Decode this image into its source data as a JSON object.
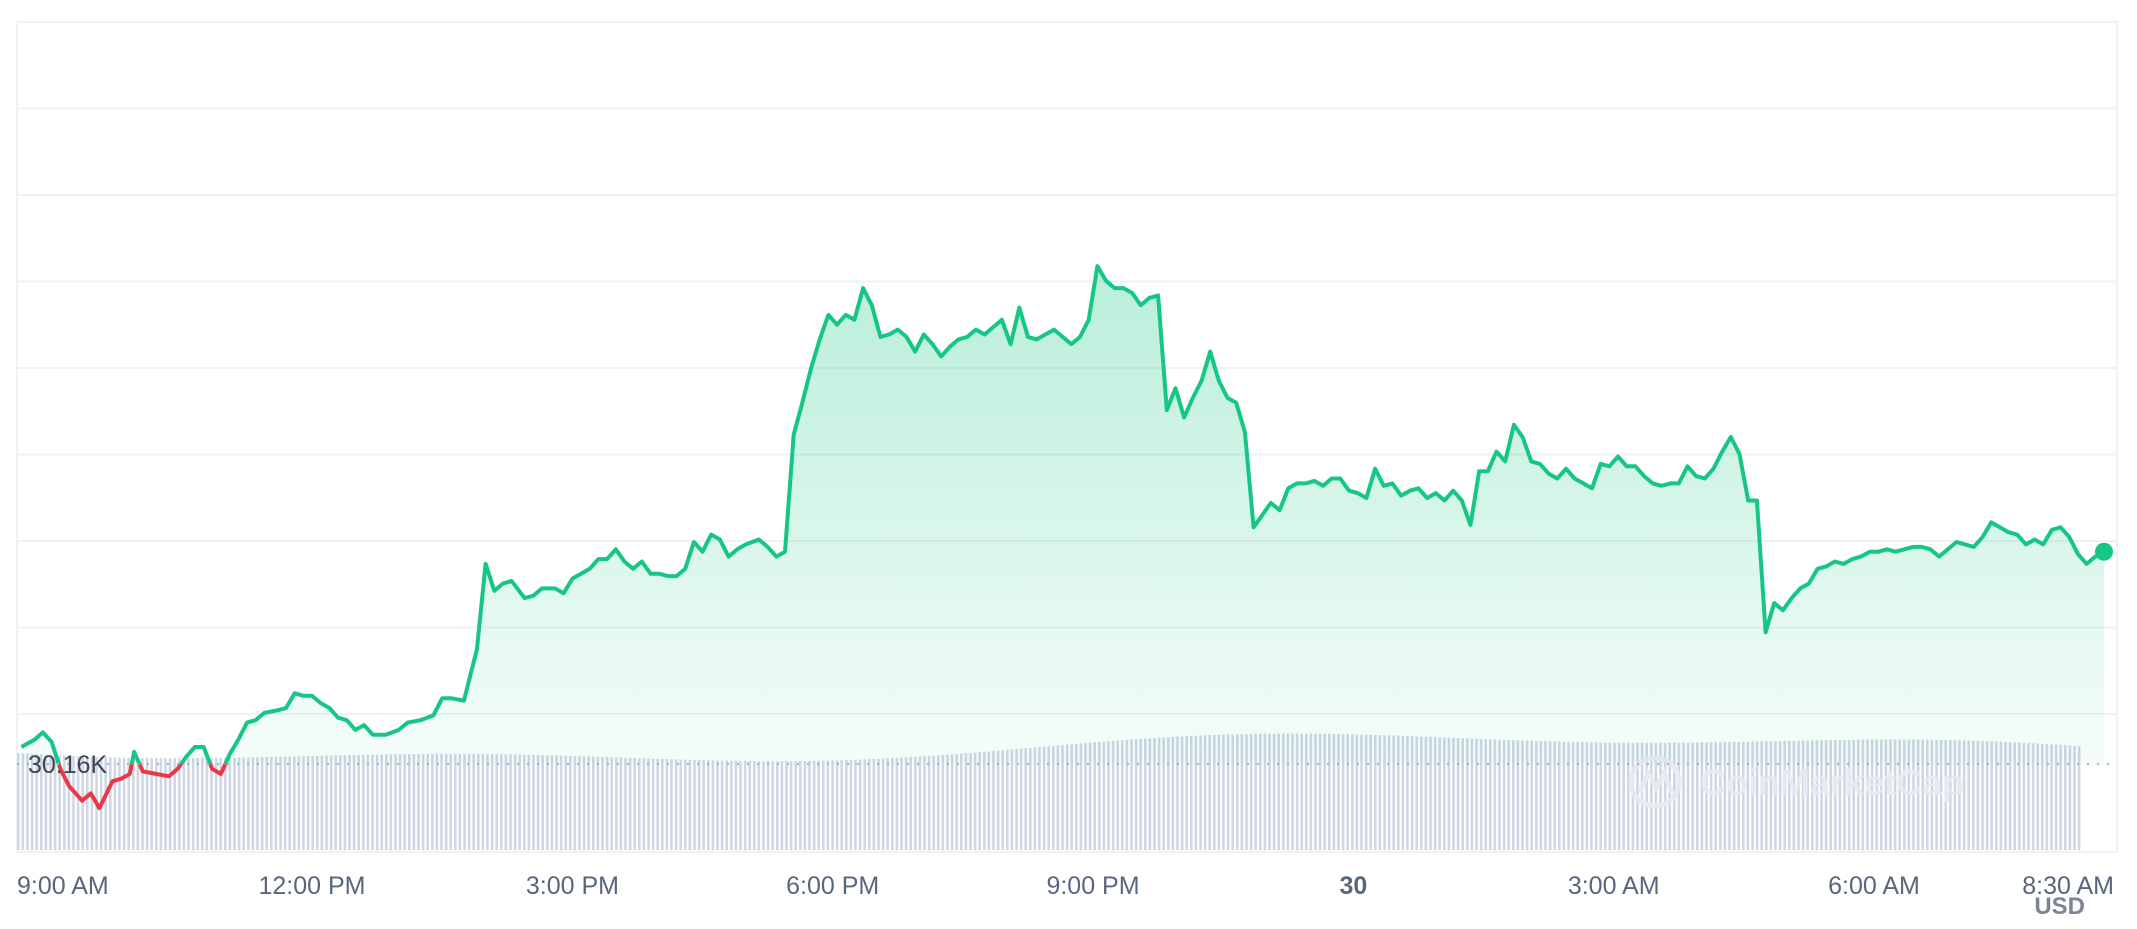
{
  "colors": {
    "up": "#16c784",
    "down": "#ea3943",
    "volume": "#cfd6e4",
    "grid": "#eff2f5",
    "reference": "#a6b0c3",
    "axis_text": "#58667e"
  },
  "watermark": {
    "text": "CoinMarketCap",
    "icon": "coinmarketcap-logo-icon"
  },
  "chart_data": {
    "type": "area",
    "reference_label": "30.16K",
    "reference_value": 30160,
    "currency_label": "USD",
    "grid": true,
    "x_range_hours": [
      8.6,
      32.8
    ],
    "y_range": [
      29800,
      33200
    ],
    "x_ticks": [
      {
        "label": "9:00 AM",
        "h": 9,
        "bold": false
      },
      {
        "label": "12:00 PM",
        "h": 12,
        "bold": false
      },
      {
        "label": "3:00 PM",
        "h": 15,
        "bold": false
      },
      {
        "label": "6:00 PM",
        "h": 18,
        "bold": false
      },
      {
        "label": "9:00 PM",
        "h": 21,
        "bold": false
      },
      {
        "label": "30",
        "h": 24,
        "bold": true
      },
      {
        "label": "3:00 AM",
        "h": 27,
        "bold": false
      },
      {
        "label": "6:00 AM",
        "h": 30,
        "bold": false
      },
      {
        "label": "8:30 AM",
        "h": 32.5,
        "bold": false
      }
    ],
    "series": [
      {
        "price_points_h": [
          [
            8.65,
            30230
          ],
          [
            8.8,
            30260
          ],
          [
            8.9,
            30290
          ],
          [
            9.0,
            30250
          ],
          [
            9.1,
            30140
          ],
          [
            9.2,
            30070
          ],
          [
            9.35,
            30010
          ],
          [
            9.45,
            30040
          ],
          [
            9.55,
            29980
          ],
          [
            9.7,
            30090
          ],
          [
            9.8,
            30100
          ],
          [
            9.9,
            30120
          ],
          [
            9.95,
            30210
          ],
          [
            10.05,
            30130
          ],
          [
            10.2,
            30120
          ],
          [
            10.35,
            30110
          ],
          [
            10.45,
            30140
          ],
          [
            10.55,
            30190
          ],
          [
            10.65,
            30230
          ],
          [
            10.75,
            30230
          ],
          [
            10.85,
            30140
          ],
          [
            10.95,
            30120
          ],
          [
            11.05,
            30200
          ],
          [
            11.15,
            30260
          ],
          [
            11.25,
            30330
          ],
          [
            11.35,
            30340
          ],
          [
            11.45,
            30370
          ],
          [
            11.6,
            30380
          ],
          [
            11.7,
            30390
          ],
          [
            11.8,
            30450
          ],
          [
            11.9,
            30440
          ],
          [
            12.0,
            30440
          ],
          [
            12.1,
            30410
          ],
          [
            12.2,
            30390
          ],
          [
            12.3,
            30350
          ],
          [
            12.4,
            30340
          ],
          [
            12.5,
            30300
          ],
          [
            12.6,
            30320
          ],
          [
            12.7,
            30280
          ],
          [
            12.85,
            30280
          ],
          [
            13.0,
            30300
          ],
          [
            13.1,
            30330
          ],
          [
            13.25,
            30340
          ],
          [
            13.4,
            30360
          ],
          [
            13.5,
            30430
          ],
          [
            13.6,
            30430
          ],
          [
            13.75,
            30420
          ],
          [
            13.9,
            30630
          ],
          [
            14.0,
            30980
          ],
          [
            14.1,
            30870
          ],
          [
            14.2,
            30900
          ],
          [
            14.3,
            30910
          ],
          [
            14.45,
            30840
          ],
          [
            14.55,
            30850
          ],
          [
            14.65,
            30880
          ],
          [
            14.8,
            30880
          ],
          [
            14.9,
            30860
          ],
          [
            15.0,
            30920
          ],
          [
            15.1,
            30940
          ],
          [
            15.2,
            30960
          ],
          [
            15.3,
            31000
          ],
          [
            15.4,
            31000
          ],
          [
            15.5,
            31040
          ],
          [
            15.6,
            30990
          ],
          [
            15.7,
            30960
          ],
          [
            15.8,
            30990
          ],
          [
            15.9,
            30940
          ],
          [
            16.0,
            30940
          ],
          [
            16.1,
            30930
          ],
          [
            16.2,
            30930
          ],
          [
            16.3,
            30960
          ],
          [
            16.4,
            31070
          ],
          [
            16.5,
            31030
          ],
          [
            16.6,
            31100
          ],
          [
            16.7,
            31080
          ],
          [
            16.8,
            31010
          ],
          [
            16.9,
            31040
          ],
          [
            17.0,
            31060
          ],
          [
            17.15,
            31080
          ],
          [
            17.25,
            31050
          ],
          [
            17.35,
            31010
          ],
          [
            17.45,
            31030
          ],
          [
            17.55,
            31510
          ],
          [
            17.65,
            31640
          ],
          [
            17.75,
            31780
          ],
          [
            17.85,
            31900
          ],
          [
            17.95,
            32000
          ],
          [
            18.05,
            31960
          ],
          [
            18.15,
            32000
          ],
          [
            18.25,
            31980
          ],
          [
            18.35,
            32110
          ],
          [
            18.45,
            32040
          ],
          [
            18.55,
            31910
          ],
          [
            18.65,
            31920
          ],
          [
            18.75,
            31940
          ],
          [
            18.85,
            31910
          ],
          [
            18.95,
            31850
          ],
          [
            19.05,
            31920
          ],
          [
            19.15,
            31880
          ],
          [
            19.25,
            31830
          ],
          [
            19.35,
            31870
          ],
          [
            19.45,
            31900
          ],
          [
            19.55,
            31910
          ],
          [
            19.65,
            31940
          ],
          [
            19.75,
            31920
          ],
          [
            19.85,
            31950
          ],
          [
            19.95,
            31980
          ],
          [
            20.05,
            31880
          ],
          [
            20.15,
            32030
          ],
          [
            20.25,
            31910
          ],
          [
            20.35,
            31900
          ],
          [
            20.45,
            31920
          ],
          [
            20.55,
            31940
          ],
          [
            20.65,
            31910
          ],
          [
            20.75,
            31880
          ],
          [
            20.85,
            31910
          ],
          [
            20.95,
            31980
          ],
          [
            21.05,
            32200
          ],
          [
            21.15,
            32140
          ],
          [
            21.25,
            32110
          ],
          [
            21.35,
            32110
          ],
          [
            21.45,
            32090
          ],
          [
            21.55,
            32040
          ],
          [
            21.65,
            32070
          ],
          [
            21.75,
            32080
          ],
          [
            21.85,
            31610
          ],
          [
            21.95,
            31700
          ],
          [
            22.05,
            31580
          ],
          [
            22.15,
            31660
          ],
          [
            22.25,
            31730
          ],
          [
            22.35,
            31850
          ],
          [
            22.45,
            31730
          ],
          [
            22.55,
            31660
          ],
          [
            22.65,
            31640
          ],
          [
            22.75,
            31520
          ],
          [
            22.85,
            31130
          ],
          [
            22.95,
            31180
          ],
          [
            23.05,
            31230
          ],
          [
            23.15,
            31200
          ],
          [
            23.25,
            31290
          ],
          [
            23.35,
            31310
          ],
          [
            23.45,
            31310
          ],
          [
            23.55,
            31320
          ],
          [
            23.65,
            31300
          ],
          [
            23.75,
            31330
          ],
          [
            23.85,
            31330
          ],
          [
            23.95,
            31280
          ],
          [
            24.05,
            31270
          ],
          [
            24.15,
            31250
          ],
          [
            24.25,
            31370
          ],
          [
            24.35,
            31300
          ],
          [
            24.45,
            31310
          ],
          [
            24.55,
            31260
          ],
          [
            24.65,
            31280
          ],
          [
            24.75,
            31290
          ],
          [
            24.85,
            31250
          ],
          [
            24.95,
            31270
          ],
          [
            25.05,
            31240
          ],
          [
            25.15,
            31280
          ],
          [
            25.25,
            31240
          ],
          [
            25.35,
            31140
          ],
          [
            25.45,
            31360
          ],
          [
            25.55,
            31360
          ],
          [
            25.65,
            31440
          ],
          [
            25.75,
            31400
          ],
          [
            25.85,
            31550
          ],
          [
            25.95,
            31500
          ],
          [
            26.05,
            31400
          ],
          [
            26.15,
            31390
          ],
          [
            26.25,
            31350
          ],
          [
            26.35,
            31330
          ],
          [
            26.45,
            31370
          ],
          [
            26.55,
            31330
          ],
          [
            26.65,
            31310
          ],
          [
            26.75,
            31290
          ],
          [
            26.85,
            31390
          ],
          [
            26.95,
            31380
          ],
          [
            27.05,
            31420
          ],
          [
            27.15,
            31380
          ],
          [
            27.25,
            31380
          ],
          [
            27.35,
            31340
          ],
          [
            27.45,
            31310
          ],
          [
            27.55,
            31300
          ],
          [
            27.65,
            31310
          ],
          [
            27.75,
            31310
          ],
          [
            27.85,
            31380
          ],
          [
            27.95,
            31340
          ],
          [
            28.05,
            31330
          ],
          [
            28.15,
            31370
          ],
          [
            28.25,
            31440
          ],
          [
            28.35,
            31500
          ],
          [
            28.45,
            31430
          ],
          [
            28.55,
            31240
          ],
          [
            28.65,
            31240
          ],
          [
            28.75,
            30700
          ],
          [
            28.85,
            30820
          ],
          [
            28.95,
            30790
          ],
          [
            29.05,
            30840
          ],
          [
            29.15,
            30880
          ],
          [
            29.25,
            30900
          ],
          [
            29.35,
            30960
          ],
          [
            29.45,
            30970
          ],
          [
            29.55,
            30990
          ],
          [
            29.65,
            30980
          ],
          [
            29.75,
            31000
          ],
          [
            29.85,
            31010
          ],
          [
            29.95,
            31030
          ],
          [
            30.05,
            31030
          ],
          [
            30.15,
            31040
          ],
          [
            30.25,
            31030
          ],
          [
            30.35,
            31040
          ],
          [
            30.45,
            31050
          ],
          [
            30.55,
            31050
          ],
          [
            30.65,
            31040
          ],
          [
            30.75,
            31010
          ],
          [
            30.85,
            31040
          ],
          [
            30.95,
            31070
          ],
          [
            31.05,
            31060
          ],
          [
            31.15,
            31050
          ],
          [
            31.25,
            31090
          ],
          [
            31.35,
            31150
          ],
          [
            31.45,
            31130
          ],
          [
            31.55,
            31110
          ],
          [
            31.65,
            31100
          ],
          [
            31.75,
            31060
          ],
          [
            31.85,
            31080
          ],
          [
            31.95,
            31060
          ],
          [
            32.05,
            31120
          ],
          [
            32.15,
            31130
          ],
          [
            32.25,
            31090
          ],
          [
            32.35,
            31020
          ],
          [
            32.45,
            30980
          ],
          [
            32.55,
            31010
          ],
          [
            32.65,
            31030
          ]
        ]
      }
    ]
  }
}
